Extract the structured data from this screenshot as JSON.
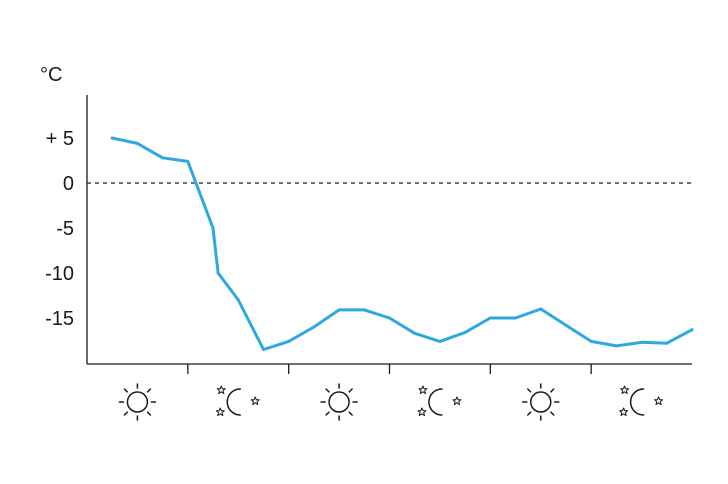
{
  "chart_data": {
    "type": "line",
    "title": "",
    "ylabel": "°C",
    "xlabel": "",
    "ylim": [
      -20,
      10
    ],
    "yticks": [
      {
        "value": 5,
        "label": "+ 5"
      },
      {
        "value": 0,
        "label": "0"
      },
      {
        "value": -5,
        "label": "-5"
      },
      {
        "value": -10,
        "label": "-10"
      },
      {
        "value": -15,
        "label": "-15"
      }
    ],
    "zero_line": "dashed",
    "categories": [
      {
        "icon": "sun-icon"
      },
      {
        "icon": "moon-stars-icon"
      },
      {
        "icon": "sun-icon"
      },
      {
        "icon": "moon-stars-icon"
      },
      {
        "icon": "sun-icon"
      },
      {
        "icon": "moon-stars-icon"
      }
    ],
    "series": [
      {
        "color": "#2fa8df",
        "x": [
          0.25,
          0.5,
          0.75,
          1.0,
          1.25,
          1.3,
          1.5,
          1.75,
          2.0,
          2.25,
          2.5,
          2.75,
          3.0,
          3.25,
          3.5,
          3.75,
          4.0,
          4.25,
          4.5,
          4.75,
          5.0,
          5.25,
          5.5,
          5.75,
          6.0
        ],
        "values": [
          5.0,
          4.4,
          2.8,
          2.4,
          -5.0,
          -10.0,
          -13.0,
          -18.5,
          -17.6,
          -16.0,
          -14.1,
          -14.1,
          -15.0,
          -16.7,
          -17.6,
          -16.6,
          -15.0,
          -15.0,
          -14.0,
          -15.8,
          -17.6,
          -18.1,
          -17.7,
          -17.8,
          -16.3
        ]
      }
    ],
    "grid": false,
    "legend": "none"
  }
}
